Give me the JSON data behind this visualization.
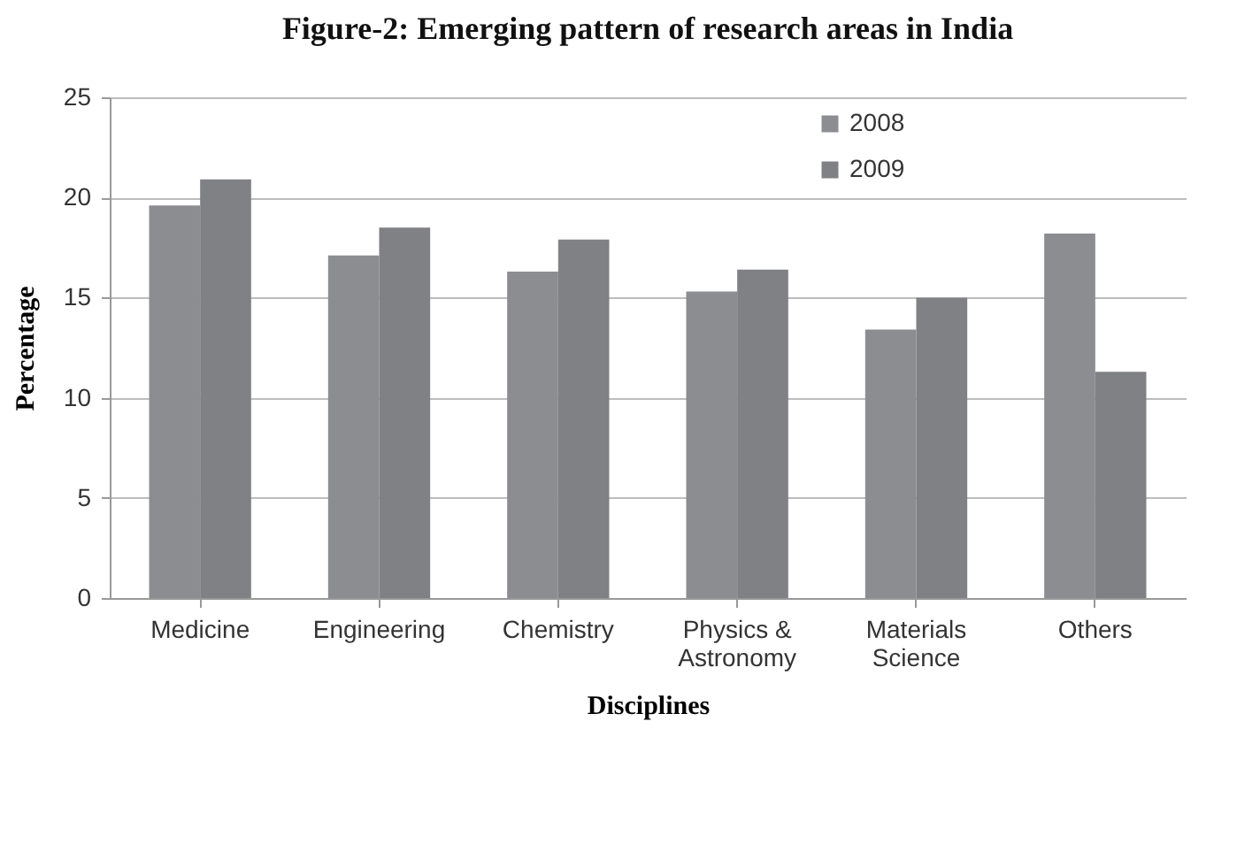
{
  "chart_data": {
    "type": "bar",
    "title": "Figure-2: Emerging pattern of research areas in India",
    "xlabel": "Disciplines",
    "ylabel": "Percentage",
    "categories": [
      "Medicine",
      "Engineering",
      "Chemistry",
      "Physics & Astronomy",
      "Materials Science",
      "Others"
    ],
    "series": [
      {
        "name": "2008",
        "color": "#8c8d91",
        "values": [
          19.6,
          17.1,
          16.3,
          15.3,
          13.4,
          18.2
        ]
      },
      {
        "name": "2009",
        "color": "#808185",
        "values": [
          20.9,
          18.5,
          17.9,
          16.4,
          15.0,
          11.3
        ]
      }
    ],
    "ylim": [
      0,
      25
    ],
    "yticks": [
      0,
      5,
      10,
      15,
      20,
      25
    ],
    "grid": "y",
    "legend": "top right"
  }
}
